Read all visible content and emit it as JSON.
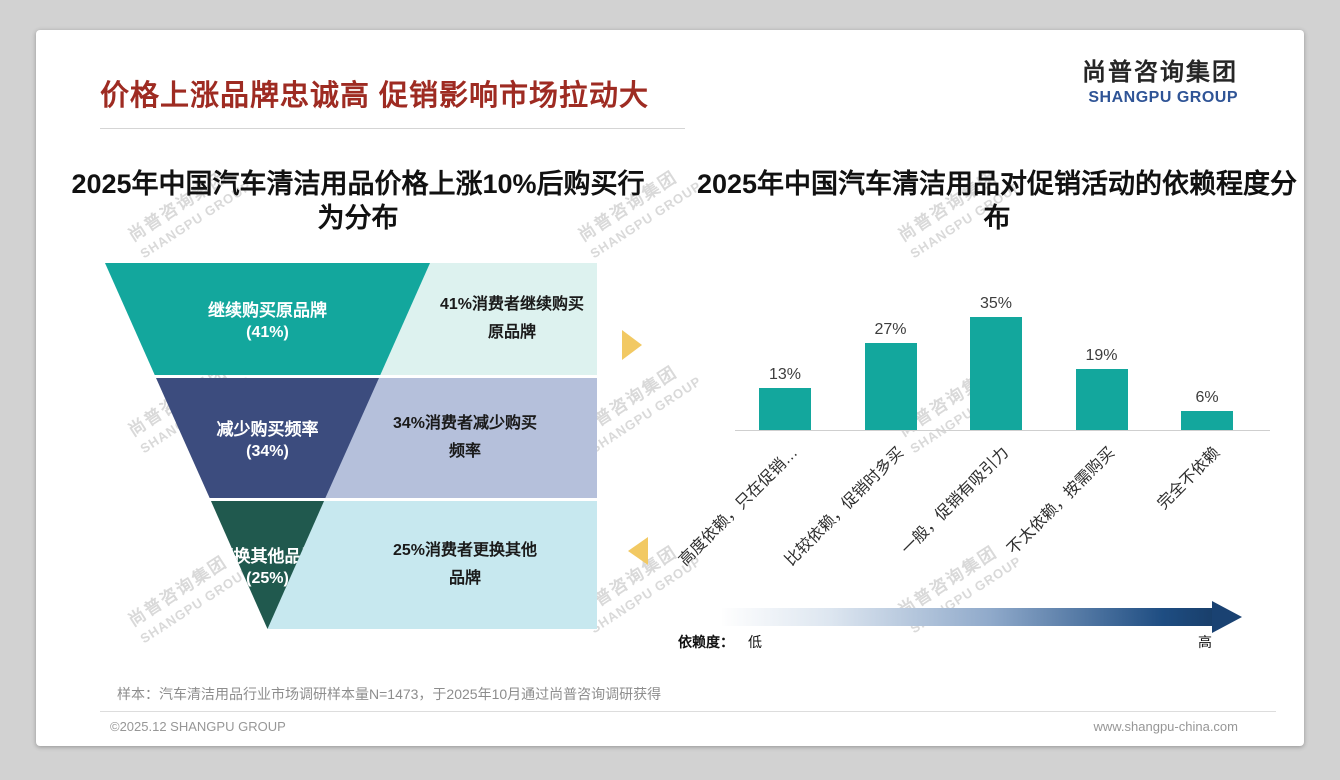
{
  "page": {
    "title": "价格上涨品牌忠诚高 促销影响市场拉动大",
    "logo_cn": "尚普咨询集团",
    "logo_en": "SHANGPU GROUP",
    "watermark_cn": "尚普咨询集团",
    "watermark_en": "SHANGPU GROUP",
    "sample_note": "样本：汽车清洁用品行业市场调研样本量N=1473，于2025年10月通过尚普咨询调研获得",
    "copyright": "©2025.12 SHANGPU GROUP",
    "website": "www.shangpu-china.com"
  },
  "colors": {
    "title-red": "#9E2B22",
    "teal": "#13A79D",
    "navy": "#3C4C7E",
    "dark-green": "#20594E",
    "mint": "#DDF2EF",
    "lavender": "#B5C0DB",
    "light-cyan": "#C7E8EF",
    "arrow-yellow": "#F2C963",
    "logo-blue": "#2F5496"
  },
  "chart_data": [
    {
      "type": "funnel",
      "title": "2025年中国汽车清洁用品价格上涨10%后购买行为分布",
      "categories": [
        "继续购买原品牌",
        "减少购买频率",
        "更换其他品牌"
      ],
      "values": [
        41,
        34,
        25
      ],
      "value_labels": [
        "(41%)",
        "(34%)",
        "(25%)"
      ],
      "annotations": [
        "41%消费者继续购买\n原品牌",
        "34%消费者减少购买\n频率",
        "25%消费者更换其他\n品牌"
      ],
      "segment_colors": [
        "#13A79D",
        "#3C4C7E",
        "#20594E"
      ],
      "annotation_box_colors": [
        "#DDF2EF",
        "#B5C0DB",
        "#C7E8EF"
      ]
    },
    {
      "type": "bar",
      "title": "2025年中国汽车清洁用品对促销活动的依赖程度分布",
      "categories": [
        "高度依赖，只在促销…",
        "比较依赖，促销时多买",
        "一般，促销有吸引力",
        "不太依赖，按需购买",
        "完全不依赖"
      ],
      "values": [
        13,
        27,
        35,
        19,
        6
      ],
      "value_labels": [
        "13%",
        "27%",
        "35%",
        "19%",
        "6%"
      ],
      "ylim": [
        0,
        40
      ],
      "grid": false,
      "legend": "none",
      "bar_color": "#13A79D",
      "axis_caption": {
        "label": "依赖度：",
        "low": "低",
        "high": "高"
      }
    }
  ]
}
